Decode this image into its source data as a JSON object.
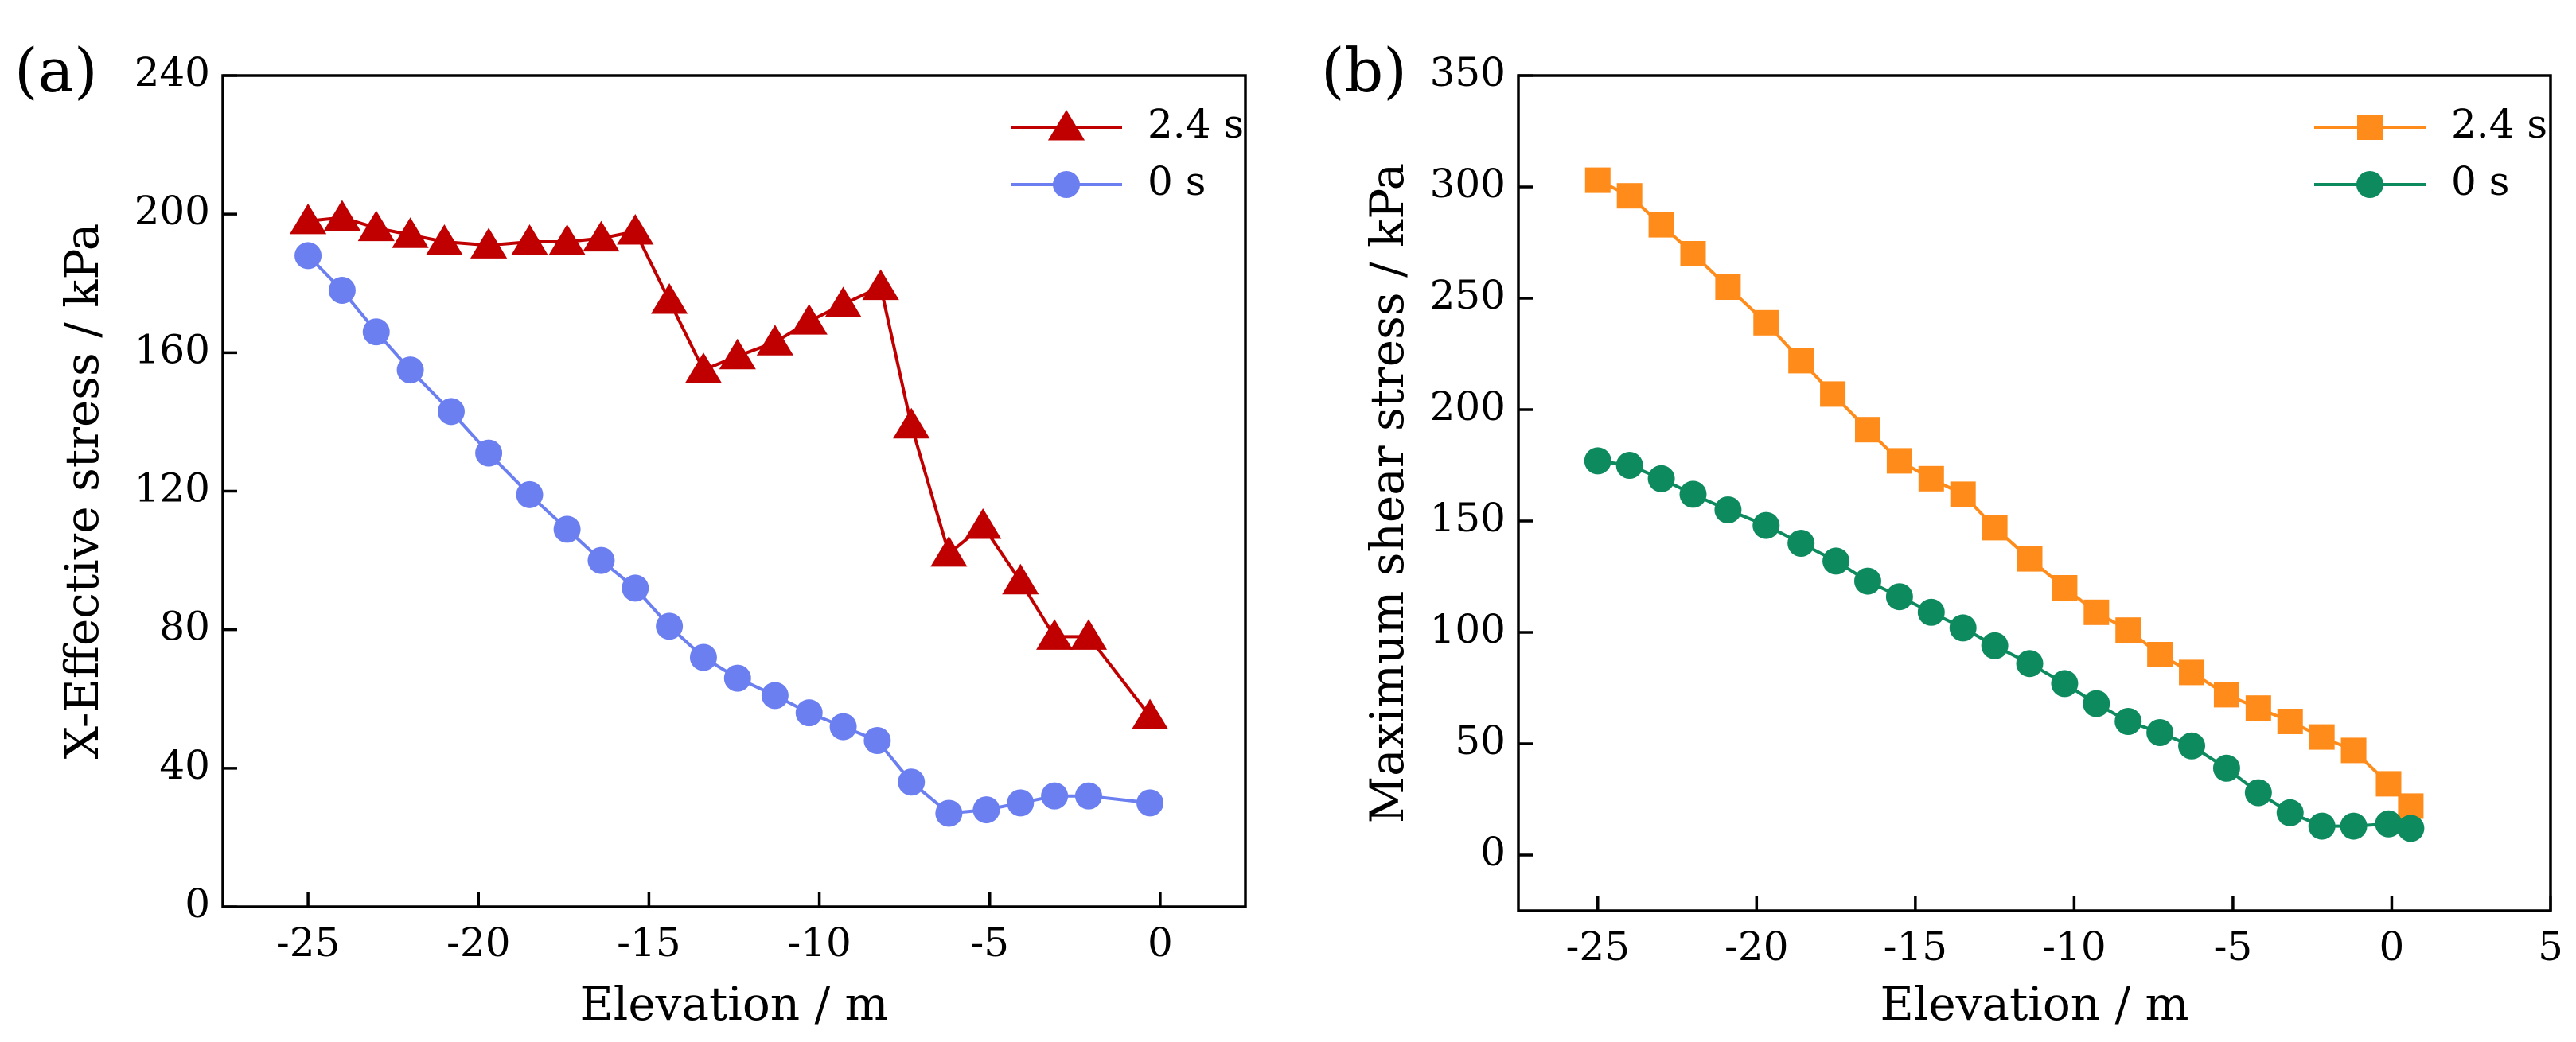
{
  "chart_data": [
    {
      "panel": "(a)",
      "type": "line",
      "title": "",
      "xlabel": "Elevation / m",
      "ylabel": "X-Effective stress / kPa",
      "xlim": [
        -27.5,
        2.5
      ],
      "ylim": [
        0,
        240
      ],
      "xticks": [
        -25,
        -20,
        -15,
        -10,
        -5,
        0
      ],
      "yticks": [
        0,
        40,
        80,
        120,
        160,
        200,
        240
      ],
      "legend_position": "top-right",
      "series": [
        {
          "name": "2.4 s",
          "color": "#C00000",
          "marker": "triangle",
          "points": [
            [
              -25,
              198
            ],
            [
              -24,
              199
            ],
            [
              -23,
              196
            ],
            [
              -22,
              194
            ],
            [
              -21,
              192
            ],
            [
              -19.7,
              191
            ],
            [
              -18.5,
              192
            ],
            [
              -17.4,
              192
            ],
            [
              -16.4,
              193
            ],
            [
              -15.4,
              195
            ],
            [
              -14.4,
              175
            ],
            [
              -13.4,
              155
            ],
            [
              -12.4,
              159
            ],
            [
              -11.3,
              163
            ],
            [
              -10.3,
              169
            ],
            [
              -9.3,
              174
            ],
            [
              -8.2,
              179
            ],
            [
              -7.3,
              139
            ],
            [
              -6.2,
              102
            ],
            [
              -5.2,
              110
            ],
            [
              -4.1,
              94
            ],
            [
              -3.1,
              78
            ],
            [
              -2.1,
              78
            ],
            [
              -0.3,
              55
            ]
          ]
        },
        {
          "name": "0 s",
          "color": "#6B7FF0",
          "marker": "circle",
          "points": [
            [
              -25,
              188
            ],
            [
              -24,
              178
            ],
            [
              -23,
              166
            ],
            [
              -22,
              155
            ],
            [
              -20.8,
              143
            ],
            [
              -19.7,
              131
            ],
            [
              -18.5,
              119
            ],
            [
              -17.4,
              109
            ],
            [
              -16.4,
              100
            ],
            [
              -15.4,
              92
            ],
            [
              -14.4,
              81
            ],
            [
              -13.4,
              72
            ],
            [
              -12.4,
              66
            ],
            [
              -11.3,
              61
            ],
            [
              -10.3,
              56
            ],
            [
              -9.3,
              52
            ],
            [
              -8.3,
              48
            ],
            [
              -7.3,
              36
            ],
            [
              -6.2,
              27
            ],
            [
              -5.1,
              28
            ],
            [
              -4.1,
              30
            ],
            [
              -3.1,
              32
            ],
            [
              -2.1,
              32
            ],
            [
              -0.3,
              30
            ]
          ]
        }
      ]
    },
    {
      "panel": "(b)",
      "type": "line",
      "title": "",
      "xlabel": "Elevation / m",
      "ylabel": "Maximum shear stress / kPa",
      "xlim": [
        -27.5,
        5
      ],
      "ylim": [
        -25,
        350
      ],
      "xticks": [
        -25,
        -20,
        -15,
        -10,
        -5,
        0,
        5
      ],
      "yticks": [
        0,
        50,
        100,
        150,
        200,
        250,
        300,
        350
      ],
      "legend_position": "top-right",
      "series": [
        {
          "name": "2.4 s",
          "color": "#FF8C1A",
          "marker": "square",
          "points": [
            [
              -25,
              303
            ],
            [
              -24,
              296
            ],
            [
              -23,
              283
            ],
            [
              -22,
              270
            ],
            [
              -20.9,
              255
            ],
            [
              -19.7,
              239
            ],
            [
              -18.6,
              222
            ],
            [
              -17.6,
              207
            ],
            [
              -16.5,
              191
            ],
            [
              -15.5,
              177
            ],
            [
              -14.5,
              169
            ],
            [
              -13.5,
              162
            ],
            [
              -12.5,
              147
            ],
            [
              -11.4,
              133
            ],
            [
              -10.3,
              120
            ],
            [
              -9.3,
              109
            ],
            [
              -8.3,
              101
            ],
            [
              -7.3,
              90
            ],
            [
              -6.3,
              82
            ],
            [
              -5.2,
              72
            ],
            [
              -4.2,
              66
            ],
            [
              -3.2,
              60
            ],
            [
              -2.2,
              53
            ],
            [
              -1.2,
              47
            ],
            [
              -0.1,
              32
            ],
            [
              0.6,
              22
            ]
          ]
        },
        {
          "name": "0 s",
          "color": "#0E8A5F",
          "marker": "circle",
          "points": [
            [
              -25,
              177
            ],
            [
              -24,
              175
            ],
            [
              -23,
              169
            ],
            [
              -22,
              162
            ],
            [
              -20.9,
              155
            ],
            [
              -19.7,
              148
            ],
            [
              -18.6,
              140
            ],
            [
              -17.5,
              132
            ],
            [
              -16.5,
              123
            ],
            [
              -15.5,
              116
            ],
            [
              -14.5,
              109
            ],
            [
              -13.5,
              102
            ],
            [
              -12.5,
              94
            ],
            [
              -11.4,
              86
            ],
            [
              -10.3,
              77
            ],
            [
              -9.3,
              68
            ],
            [
              -8.3,
              60
            ],
            [
              -7.3,
              55
            ],
            [
              -6.3,
              49
            ],
            [
              -5.2,
              39
            ],
            [
              -4.2,
              28
            ],
            [
              -3.2,
              19
            ],
            [
              -2.2,
              13
            ],
            [
              -1.2,
              13
            ],
            [
              -0.1,
              14
            ],
            [
              0.6,
              12
            ]
          ]
        }
      ]
    }
  ]
}
